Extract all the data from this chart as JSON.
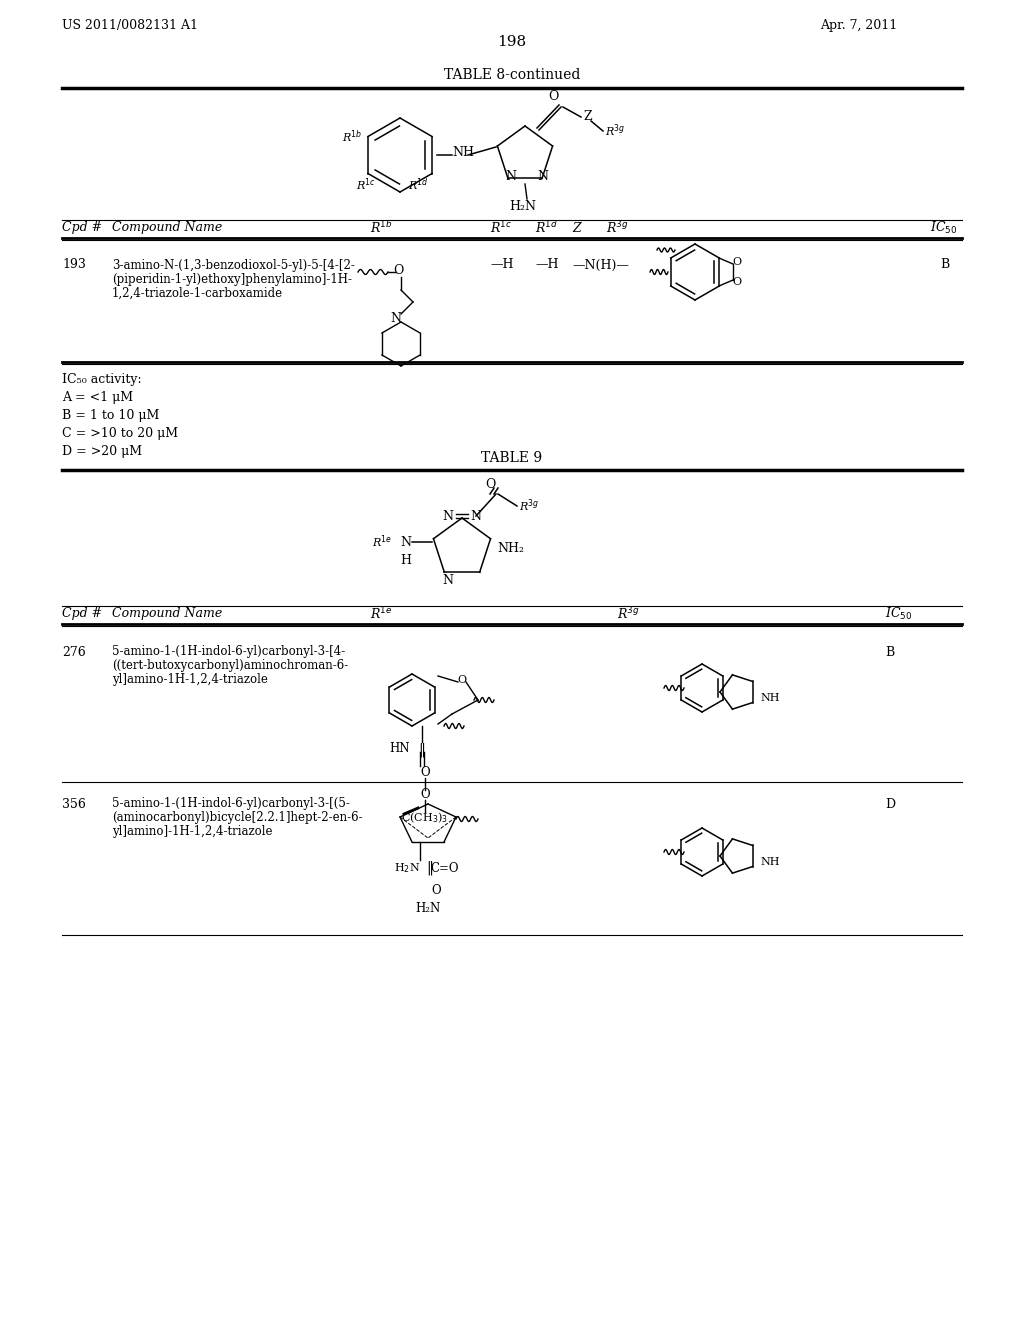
{
  "page_number": "198",
  "patent_number": "US 2011/0082131 A1",
  "patent_date": "Apr. 7, 2011",
  "table8_title": "TABLE 8-continued",
  "table9_title": "TABLE 9",
  "ic50_lines": [
    "IC₅₀ activity:",
    "A = <1 μM",
    "B = 1 to 10 μM",
    "C = >10 to 20 μM",
    "D = >20 μM"
  ],
  "cpd193_name": [
    "3-amino-N-(1,3-benzodioxol-5-yl)-5-[4-[2-",
    "(piperidin-1-yl)ethoxy]phenylamino]-1H-",
    "1,2,4-triazole-1-carboxamide"
  ],
  "cpd193_r1c": "—H",
  "cpd193_r1d": "—H",
  "cpd193_z": "—N(H)—",
  "cpd193_ic50": "B",
  "cpd276_name": [
    "5-amino-1-(1H-indol-6-yl)carbonyl-3-[4-",
    "((tert-butoxycarbonyl)aminochroman-6-",
    "yl]amino-1H-1,2,4-triazole"
  ],
  "cpd276_ic50": "B",
  "cpd356_name": [
    "5-amino-1-(1H-indol-6-yl)carbonyl-3-[(5-",
    "(aminocarbonyl)bicycle[2.2.1]hept-2-en-6-",
    "yl]amino]-1H-1,2,4-triazole"
  ],
  "cpd356_ic50": "D"
}
